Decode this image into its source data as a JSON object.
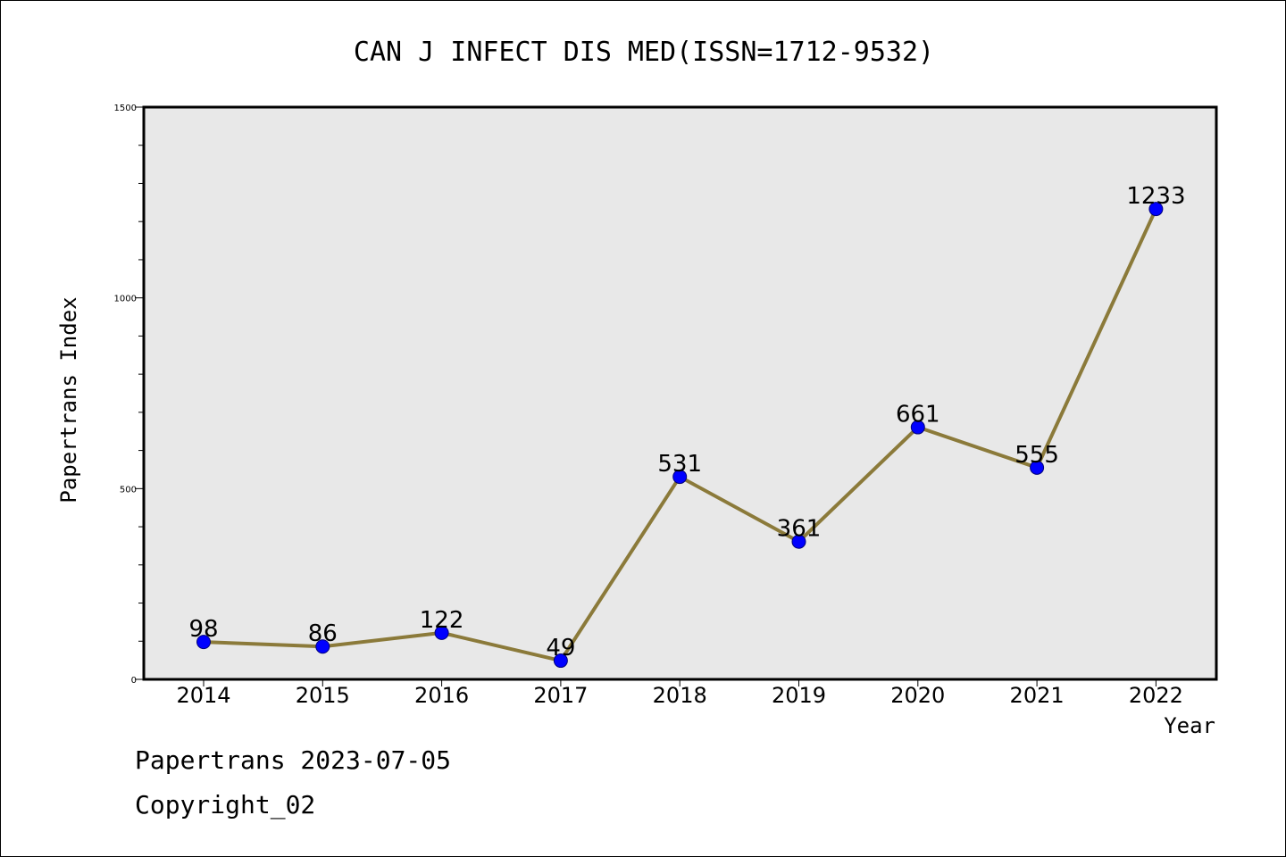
{
  "chart_data": {
    "type": "line",
    "title": "CAN J INFECT DIS MED(ISSN=1712-9532)",
    "xlabel": "Year",
    "ylabel": "Papertrans Index",
    "categories": [
      "2014",
      "2015",
      "2016",
      "2017",
      "2018",
      "2019",
      "2020",
      "2021",
      "2022"
    ],
    "series": [
      {
        "values": [
          98,
          86,
          122,
          49,
          531,
          361,
          661,
          555,
          1233
        ]
      }
    ],
    "data_labels": [
      "98",
      "86",
      "122",
      "49",
      "531",
      "361",
      "661",
      "555",
      "1233"
    ],
    "ylim": [
      0,
      1500
    ],
    "y_ticks": [
      0,
      500,
      1000,
      1500
    ],
    "y_tick_labels": [
      "0",
      "500",
      "1000",
      "1500"
    ],
    "y_minor_step": 100,
    "grid": false,
    "colors": {
      "plot_background": "#e8e8e8",
      "line": "#8b7a3a",
      "marker": "#0000ff"
    }
  },
  "footer": {
    "date_line": "Papertrans 2023-07-05",
    "copyright_line": "Copyright_02"
  }
}
